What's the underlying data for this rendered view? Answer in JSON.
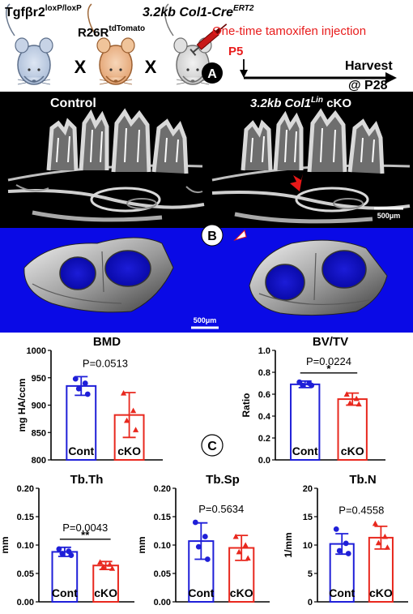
{
  "panel_a": {
    "mouse1": {
      "base": "Tgfβr2",
      "sup": "loxP/loxP"
    },
    "mouse2": {
      "base": "R26R",
      "sup": "tdTomato"
    },
    "mouse3": {
      "base": "3.2kb Col1-Cre",
      "sup": "ERT2"
    },
    "cross_symbol": "X",
    "injection_text": "One-time tamoxifen injection",
    "injection_day": "P5",
    "harvest_line1": "Harvest",
    "harvest_line2": "@ P28",
    "badge": "A"
  },
  "panel_b": {
    "control_label": "Control",
    "cko_label": {
      "pre": "3.2kb Col1",
      "sup": "Lin",
      "post": " cKO"
    },
    "scale_top": "500μm",
    "scale_bottom": "500μm",
    "badge": "B"
  },
  "panel_c": {
    "badge": "C",
    "colors": {
      "cont": "#1f1fd8",
      "cko": "#e8281e"
    },
    "charts": [
      {
        "id": "bmd",
        "title": "BMD",
        "ylabel": "mg HA/ccm",
        "ylim": [
          800,
          1000
        ],
        "ticks": [
          "800",
          "850",
          "900",
          "950",
          "1000"
        ],
        "categories": [
          "Cont",
          "cKO"
        ],
        "values": [
          935,
          882
        ],
        "sd": [
          17,
          41
        ],
        "points": [
          [
            948,
            940,
            930,
            920
          ],
          [
            922,
            890,
            872,
            855
          ]
        ],
        "pvalue": "P=0.0513",
        "sig": ""
      },
      {
        "id": "bvtv",
        "title": "BV/TV",
        "ylabel": "Ratio",
        "ylim": [
          0,
          1.0
        ],
        "ticks": [
          "0.0",
          "0.2",
          "0.4",
          "0.6",
          "0.8",
          "1.0"
        ],
        "categories": [
          "Cont",
          "cKO"
        ],
        "values": [
          0.69,
          0.555
        ],
        "sd": [
          0.03,
          0.055
        ],
        "points": [
          [
            0.71,
            0.7,
            0.68,
            0.68
          ],
          [
            0.6,
            0.56,
            0.52,
            0.51
          ]
        ],
        "pvalue": "P=0.0224",
        "sig": "*"
      },
      {
        "id": "tbth",
        "title": "Tb.Th",
        "ylabel": "mm",
        "ylim": [
          0,
          0.2
        ],
        "ticks": [
          "0.00",
          "0.05",
          "0.10",
          "0.15",
          "0.20"
        ],
        "categories": [
          "Cont",
          "cKO"
        ],
        "values": [
          0.088,
          0.064
        ],
        "sd": [
          0.008,
          0.007
        ],
        "points": [
          [
            0.093,
            0.089,
            0.085,
            0.082
          ],
          [
            0.07,
            0.066,
            0.062,
            0.059
          ]
        ],
        "pvalue": "P=0.0043",
        "sig": "**"
      },
      {
        "id": "tbsp",
        "title": "Tb.Sp",
        "ylabel": "mm",
        "ylim": [
          0,
          0.2
        ],
        "ticks": [
          "0.00",
          "0.05",
          "0.10",
          "0.15",
          "0.20"
        ],
        "categories": [
          "Cont",
          "cKO"
        ],
        "values": [
          0.107,
          0.095
        ],
        "sd": [
          0.032,
          0.022
        ],
        "points": [
          [
            0.14,
            0.115,
            0.097,
            0.075
          ],
          [
            0.115,
            0.1,
            0.088,
            0.077
          ]
        ],
        "pvalue": "P=0.5634",
        "sig": ""
      },
      {
        "id": "tbn",
        "title": "Tb.N",
        "ylabel": "1/mm",
        "ylim": [
          0,
          20
        ],
        "ticks": [
          "0",
          "5",
          "10",
          "15",
          "20"
        ],
        "categories": [
          "Cont",
          "cKO"
        ],
        "values": [
          10.2,
          11.3
        ],
        "sd": [
          1.8,
          2.0
        ],
        "points": [
          [
            12.8,
            10.3,
            9.0,
            8.5
          ],
          [
            13.8,
            11.5,
            10.4,
            9.6
          ]
        ],
        "pvalue": "P=0.4558",
        "sig": ""
      }
    ]
  }
}
